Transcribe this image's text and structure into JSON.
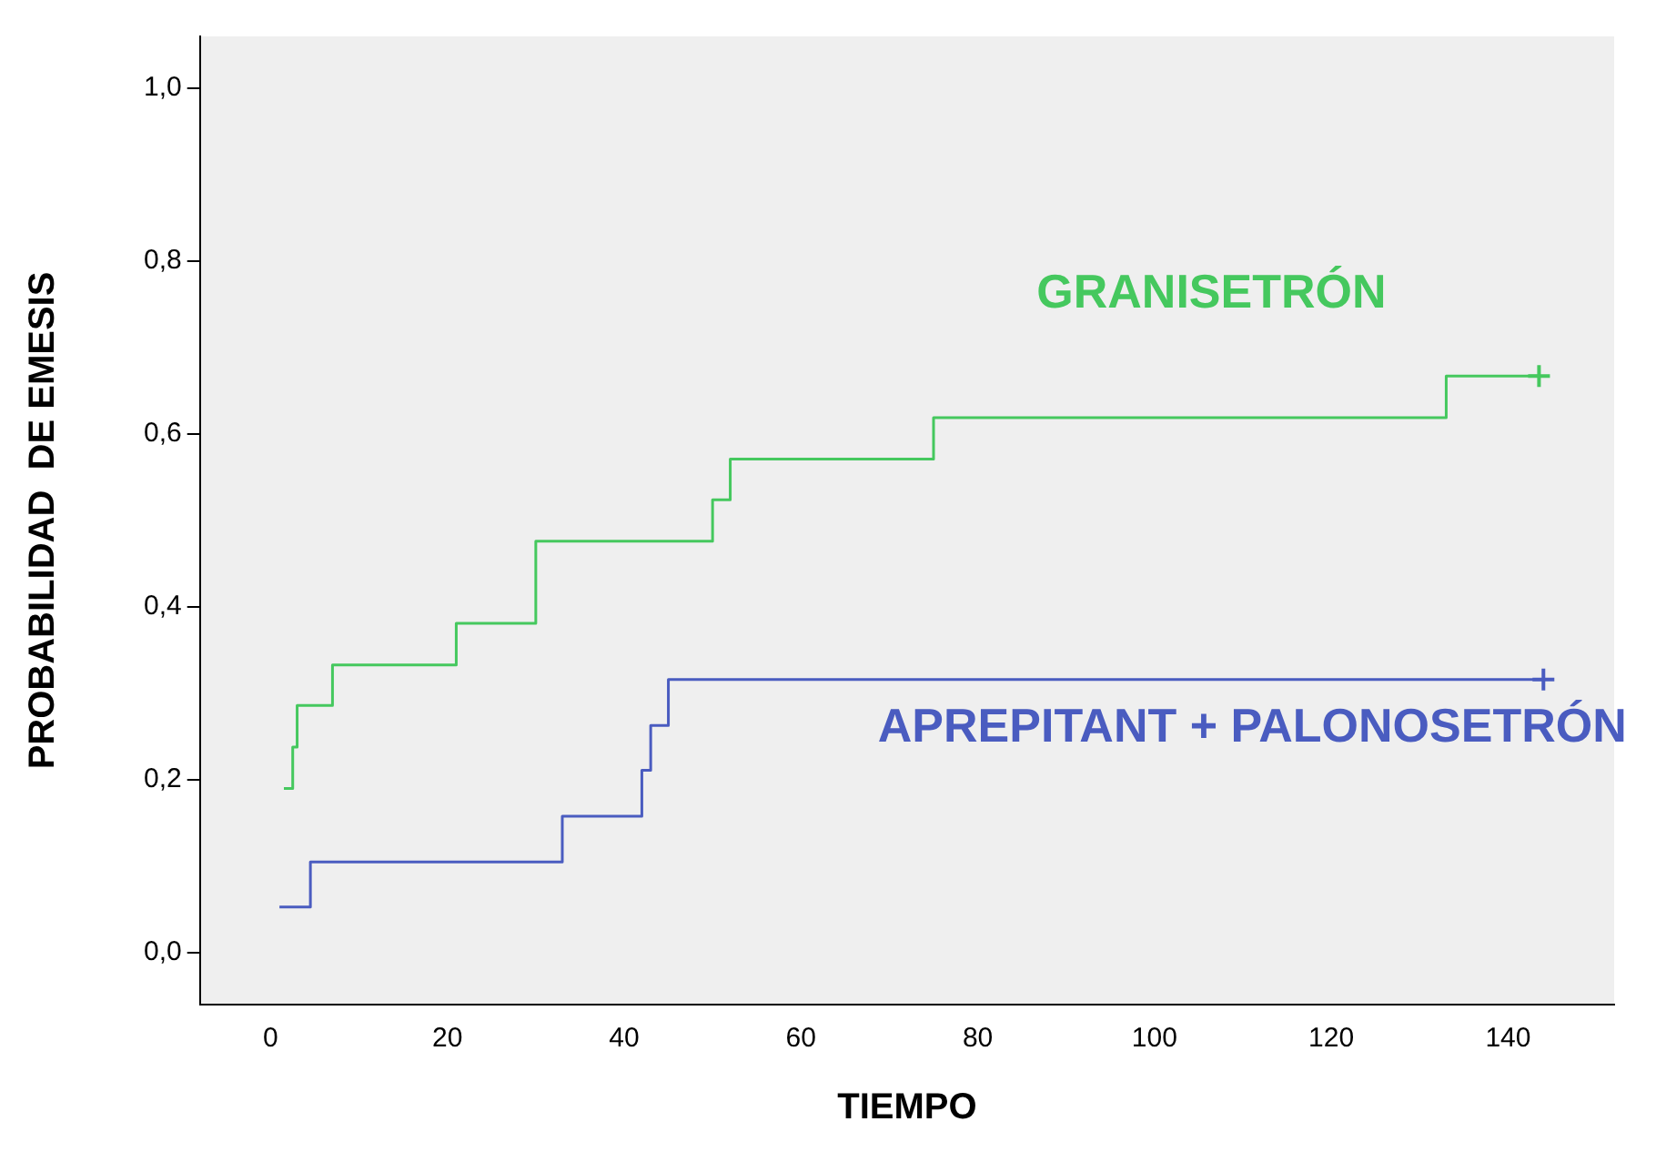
{
  "chart_data": {
    "type": "step",
    "xlabel": "TIEMPO",
    "ylabel": "PROBABILIDAD  DE EMESIS",
    "xlim": [
      -8,
      152
    ],
    "ylim": [
      -0.06,
      1.06
    ],
    "xticks": [
      0,
      20,
      40,
      60,
      80,
      100,
      120,
      140
    ],
    "yticks": [
      {
        "value": 0,
        "label": "0,0"
      },
      {
        "value": 0.2,
        "label": "0,2"
      },
      {
        "value": 0.4,
        "label": "0,4"
      },
      {
        "value": 0.6,
        "label": "0,6"
      },
      {
        "value": 0.8,
        "label": "0,8"
      },
      {
        "value": 1,
        "label": "1,0"
      }
    ],
    "grid": false,
    "legend": false,
    "marker": "none",
    "series": [
      {
        "name": "GRANISETRÓN",
        "color": "#45c85e",
        "x": [
          1.5,
          2.5,
          3,
          7,
          21,
          30,
          50,
          52,
          75,
          133,
          143.5
        ],
        "values": [
          0.19,
          0.238,
          0.286,
          0.333,
          0.381,
          0.476,
          0.524,
          0.571,
          0.619,
          0.667,
          0.667
        ]
      },
      {
        "name": "APREPITANT + PALONOSETRÓN",
        "color": "#4a5cc0",
        "x": [
          1,
          4.5,
          33,
          42,
          43,
          45,
          144
        ],
        "values": [
          0.053,
          0.105,
          0.158,
          0.211,
          0.263,
          0.316,
          0.316
        ]
      },
      {
        "type": "scatter",
        "marker": "cross",
        "color": "#45c85e",
        "x": [
          143.5
        ],
        "values": [
          0.667
        ]
      },
      {
        "type": "scatter",
        "marker": "cross",
        "color": "#4a5cc0",
        "x": [
          144
        ],
        "values": [
          0.316
        ]
      }
    ]
  }
}
